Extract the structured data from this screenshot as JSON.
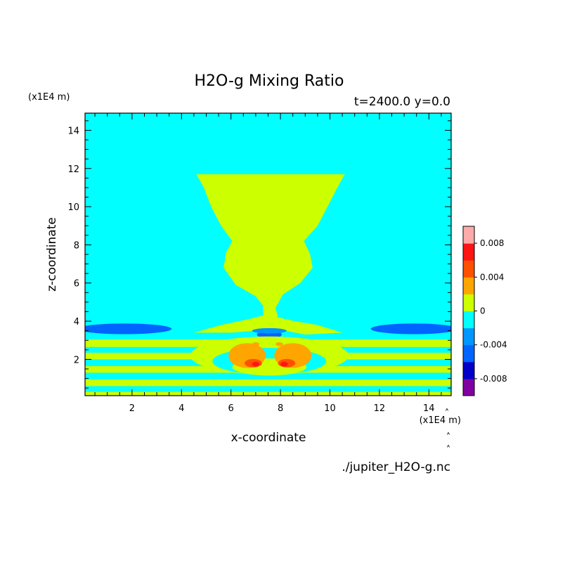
{
  "chart_data": {
    "type": "heatmap",
    "title": "H2O-g Mixing Ratio",
    "subtitle": "t=2400.0 y=0.0",
    "xlabel": "x-coordinate",
    "ylabel": "z-coordinate",
    "x_unit": "(x1E4 m)",
    "z_unit": "(x1E4 m)",
    "xlim": [
      0.1,
      14.9
    ],
    "ylim": [
      0.1,
      14.9
    ],
    "x_ticks": [
      2,
      4,
      6,
      8,
      10,
      12,
      14
    ],
    "y_ticks": [
      2,
      4,
      6,
      8,
      10,
      12,
      14
    ],
    "grid": false,
    "source_file": "./jupiter_H2O-g.nc",
    "colorbar": {
      "levels": [
        -0.01,
        -0.008,
        -0.006,
        -0.004,
        -0.002,
        0,
        0.002,
        0.004,
        0.006,
        0.008,
        0.01
      ],
      "colors": [
        "#8000a0",
        "#0000c8",
        "#0064ff",
        "#0096ff",
        "#00ffff",
        "#ccff00",
        "#ffa500",
        "#ff5000",
        "#ff1414",
        "#ffaaaa"
      ],
      "tick_values": [
        -0.008,
        -0.004,
        0,
        0.004,
        0.008
      ],
      "tick_labels": [
        "-0.008",
        "-0.004",
        "0",
        "0.004",
        "0.008"
      ]
    },
    "background_level": 4,
    "regions": [
      {
        "level": 5,
        "kind": "polygon",
        "points": [
          [
            4.6,
            11.7
          ],
          [
            10.6,
            11.7
          ],
          [
            10.3,
            11.0
          ],
          [
            9.9,
            10.0
          ],
          [
            9.5,
            9.0
          ],
          [
            8.95,
            8.2
          ],
          [
            9.2,
            7.5
          ],
          [
            9.3,
            6.8
          ],
          [
            8.8,
            6.0
          ],
          [
            8.1,
            5.4
          ],
          [
            7.8,
            4.7
          ],
          [
            7.9,
            4.2
          ],
          [
            8.6,
            4.0
          ],
          [
            9.5,
            3.8
          ],
          [
            10.5,
            3.4
          ],
          [
            9.0,
            3.3
          ],
          [
            8.2,
            3.5
          ],
          [
            7.6,
            3.6
          ],
          [
            7.0,
            3.5
          ],
          [
            6.0,
            3.4
          ],
          [
            4.5,
            3.4
          ],
          [
            5.6,
            3.8
          ],
          [
            6.7,
            4.1
          ],
          [
            7.3,
            4.3
          ],
          [
            7.3,
            4.8
          ],
          [
            7.0,
            5.3
          ],
          [
            6.2,
            5.9
          ],
          [
            5.7,
            6.8
          ],
          [
            5.8,
            7.6
          ],
          [
            6.05,
            8.2
          ],
          [
            5.6,
            9.0
          ],
          [
            5.2,
            10.0
          ],
          [
            4.9,
            11.0
          ]
        ]
      },
      {
        "level": 2,
        "kind": "ellipse",
        "center": [
          1.7,
          3.6
        ],
        "radii": [
          1.9,
          0.28
        ]
      },
      {
        "level": 2,
        "kind": "ellipse",
        "center": [
          13.4,
          3.6
        ],
        "radii": [
          1.75,
          0.28
        ]
      },
      {
        "level": 2,
        "kind": "ellipse",
        "center": [
          7.55,
          3.3
        ],
        "radii": [
          0.5,
          0.22
        ]
      },
      {
        "level": 3,
        "kind": "ellipse",
        "center": [
          7.55,
          3.5
        ],
        "radii": [
          0.7,
          0.14
        ]
      },
      {
        "level": 5,
        "kind": "band",
        "z": [
          2.65,
          3.05
        ]
      },
      {
        "level": 5,
        "kind": "band",
        "z": [
          2.0,
          2.35
        ]
      },
      {
        "level": 5,
        "kind": "band",
        "z": [
          1.3,
          1.65
        ]
      },
      {
        "level": 5,
        "kind": "band",
        "z": [
          0.6,
          0.95
        ]
      },
      {
        "level": 5,
        "kind": "band",
        "z": [
          0.1,
          0.3
        ]
      },
      {
        "level": 5,
        "kind": "ellipse",
        "center": [
          7.55,
          2.2
        ],
        "radii": [
          3.2,
          1.0
        ]
      },
      {
        "level": 4,
        "kind": "ellipse",
        "center": [
          7.55,
          1.9
        ],
        "radii": [
          2.3,
          0.7
        ]
      },
      {
        "level": 5,
        "kind": "ellipse",
        "center": [
          7.55,
          1.6
        ],
        "radii": [
          1.5,
          0.45
        ]
      },
      {
        "level": 6,
        "kind": "ellipse",
        "center": [
          6.65,
          2.2
        ],
        "radii": [
          0.75,
          0.65
        ]
      },
      {
        "level": 6,
        "kind": "ellipse",
        "center": [
          8.5,
          2.2
        ],
        "radii": [
          0.75,
          0.65
        ]
      },
      {
        "level": 7,
        "kind": "ellipse",
        "center": [
          6.9,
          1.8
        ],
        "radii": [
          0.35,
          0.22
        ]
      },
      {
        "level": 7,
        "kind": "ellipse",
        "center": [
          8.25,
          1.8
        ],
        "radii": [
          0.35,
          0.22
        ]
      },
      {
        "level": 8,
        "kind": "ellipse",
        "center": [
          7.0,
          1.75
        ],
        "radii": [
          0.15,
          0.12
        ]
      },
      {
        "level": 8,
        "kind": "ellipse",
        "center": [
          8.15,
          1.75
        ],
        "radii": [
          0.15,
          0.12
        ]
      },
      {
        "level": 6,
        "kind": "ellipse",
        "center": [
          7.0,
          2.8
        ],
        "radii": [
          0.15,
          0.1
        ]
      },
      {
        "level": 6,
        "kind": "ellipse",
        "center": [
          7.95,
          2.8
        ],
        "radii": [
          0.15,
          0.1
        ]
      }
    ]
  }
}
